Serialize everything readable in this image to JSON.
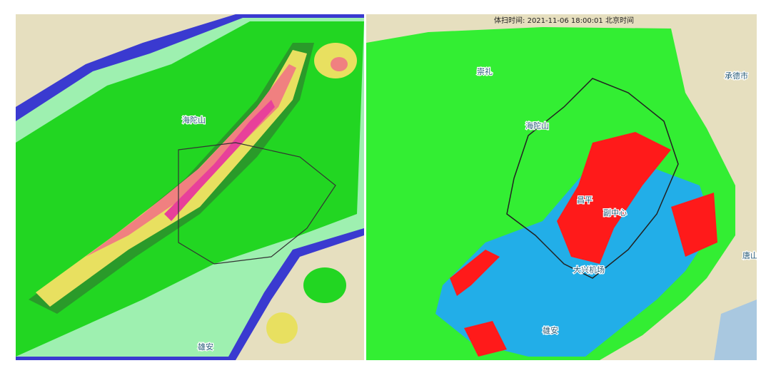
{
  "header": {
    "scan_time": "体扫时间: 2021-11-06 18:00:01 北京时间"
  },
  "left_map": {
    "labels": [
      "海陀山",
      "雄安"
    ]
  },
  "right_map": {
    "labels": [
      "崇礼",
      "海陀山",
      "承德市",
      "昌平",
      "副中心",
      "大兴机场",
      "雄安",
      "唐山"
    ]
  }
}
